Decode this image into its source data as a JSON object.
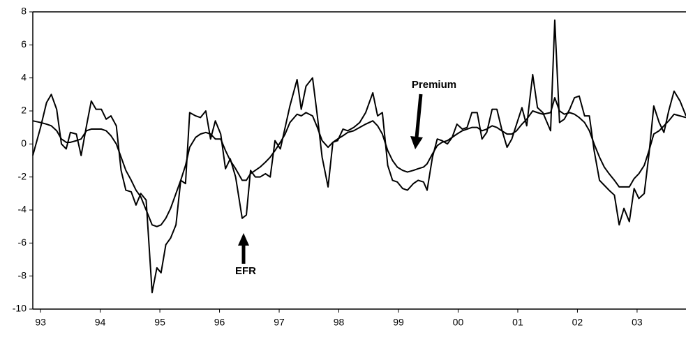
{
  "chart_data": {
    "type": "line",
    "x": [
      1992.87,
      1993.0,
      1993.1,
      1993.18,
      1993.27,
      1993.35,
      1993.43,
      1993.5,
      1993.6,
      1993.68,
      1993.77,
      1993.85,
      1993.93,
      1994.02,
      1994.1,
      1994.18,
      1994.27,
      1994.35,
      1994.43,
      1994.52,
      1994.6,
      1994.68,
      1994.77,
      1994.87,
      1994.95,
      1995.02,
      1995.1,
      1995.18,
      1995.27,
      1995.35,
      1995.43,
      1995.5,
      1995.6,
      1995.68,
      1995.77,
      1995.85,
      1995.93,
      1996.02,
      1996.1,
      1996.18,
      1996.27,
      1996.38,
      1996.45,
      1996.52,
      1996.6,
      1996.68,
      1996.77,
      1996.85,
      1996.93,
      1997.02,
      1997.1,
      1997.18,
      1997.3,
      1997.37,
      1997.45,
      1997.56,
      1997.64,
      1997.72,
      1997.82,
      1997.9,
      1997.98,
      1998.07,
      1998.15,
      1998.25,
      1998.35,
      1998.45,
      1998.57,
      1998.65,
      1998.73,
      1998.82,
      1998.9,
      1998.98,
      1999.07,
      1999.15,
      1999.25,
      1999.33,
      1999.42,
      1999.48,
      1999.57,
      1999.65,
      1999.73,
      1999.82,
      1999.9,
      1999.98,
      2000.07,
      2000.15,
      2000.23,
      2000.32,
      2000.4,
      2000.48,
      2000.57,
      2000.65,
      2000.73,
      2000.82,
      2000.9,
      2000.98,
      2001.07,
      2001.15,
      2001.25,
      2001.33,
      2001.42,
      2001.55,
      2001.62,
      2001.7,
      2001.78,
      2001.87,
      2001.95,
      2002.03,
      2002.12,
      2002.2,
      2002.28,
      2002.37,
      2002.45,
      2002.53,
      2002.62,
      2002.7,
      2002.78,
      2002.87,
      2002.95,
      2003.03,
      2003.12,
      2003.2,
      2003.28,
      2003.37,
      2003.45,
      2003.53,
      2003.62,
      2003.72,
      2003.82
    ],
    "series": [
      {
        "name": "EFR",
        "color": "#000000",
        "values": [
          -0.7,
          1.0,
          2.5,
          3.0,
          2.1,
          0.0,
          -0.3,
          0.7,
          0.6,
          -0.7,
          1.1,
          2.6,
          2.1,
          2.1,
          1.5,
          1.7,
          1.1,
          -1.6,
          -2.8,
          -2.9,
          -3.7,
          -3.0,
          -3.4,
          -9.0,
          -7.5,
          -7.8,
          -6.1,
          -5.7,
          -4.9,
          -2.2,
          -2.4,
          1.9,
          1.7,
          1.6,
          2.0,
          0.3,
          1.4,
          0.6,
          -1.5,
          -0.9,
          -2.0,
          -4.5,
          -4.3,
          -1.6,
          -2.0,
          -2.0,
          -1.8,
          -2.0,
          0.2,
          -0.3,
          1.0,
          2.3,
          3.9,
          2.1,
          3.5,
          4.0,
          1.7,
          -0.8,
          -2.6,
          0.1,
          0.2,
          0.9,
          0.8,
          1.0,
          1.3,
          1.9,
          3.1,
          1.7,
          1.9,
          -1.3,
          -2.2,
          -2.3,
          -2.7,
          -2.8,
          -2.4,
          -2.2,
          -2.3,
          -2.8,
          -0.8,
          0.3,
          0.2,
          0.0,
          0.4,
          1.2,
          0.9,
          1.0,
          1.9,
          1.9,
          0.3,
          0.7,
          2.1,
          2.1,
          0.9,
          -0.2,
          0.3,
          1.2,
          2.2,
          1.1,
          4.2,
          2.2,
          1.9,
          0.8,
          7.5,
          1.3,
          1.5,
          2.1,
          2.8,
          2.9,
          1.7,
          1.7,
          -0.4,
          -2.2,
          -2.5,
          -2.8,
          -3.1,
          -4.9,
          -3.9,
          -4.7,
          -2.7,
          -3.3,
          -3.0,
          -0.6,
          2.3,
          1.3,
          0.7,
          2.0,
          3.2,
          2.6,
          1.7
        ]
      },
      {
        "name": "Premium",
        "color": "#000000",
        "values": [
          1.4,
          1.3,
          1.2,
          1.1,
          0.8,
          0.3,
          0.1,
          0.1,
          0.2,
          0.3,
          0.8,
          0.9,
          0.9,
          0.9,
          0.8,
          0.5,
          0.0,
          -0.8,
          -1.6,
          -2.2,
          -2.8,
          -3.2,
          -4.0,
          -4.9,
          -5.0,
          -4.9,
          -4.5,
          -3.9,
          -3.0,
          -2.2,
          -1.3,
          -0.2,
          0.4,
          0.6,
          0.7,
          0.6,
          0.3,
          0.3,
          -0.4,
          -1.0,
          -1.5,
          -2.2,
          -2.2,
          -1.8,
          -1.6,
          -1.4,
          -1.1,
          -0.8,
          -0.4,
          0.1,
          0.6,
          1.3,
          1.8,
          1.7,
          1.9,
          1.7,
          1.0,
          0.2,
          -0.2,
          0.1,
          0.3,
          0.5,
          0.7,
          0.8,
          1.0,
          1.2,
          1.4,
          1.1,
          0.6,
          -0.4,
          -1.0,
          -1.4,
          -1.6,
          -1.7,
          -1.6,
          -1.5,
          -1.4,
          -1.2,
          -0.6,
          -0.1,
          0.1,
          0.2,
          0.4,
          0.6,
          0.8,
          0.9,
          1.0,
          1.0,
          0.8,
          0.9,
          1.1,
          1.0,
          0.8,
          0.6,
          0.6,
          0.8,
          1.2,
          1.5,
          2.0,
          1.9,
          1.8,
          1.9,
          2.8,
          2.0,
          1.8,
          1.9,
          1.8,
          1.6,
          1.3,
          0.8,
          0.0,
          -0.8,
          -1.4,
          -1.8,
          -2.2,
          -2.6,
          -2.6,
          -2.6,
          -2.1,
          -1.8,
          -1.3,
          -0.4,
          0.6,
          0.8,
          1.1,
          1.4,
          1.8,
          1.7,
          1.6
        ]
      }
    ],
    "xlim": [
      1992.87,
      2003.82
    ],
    "xticks": [
      {
        "value": 1993,
        "label": "93"
      },
      {
        "value": 1994,
        "label": "94"
      },
      {
        "value": 1995,
        "label": "95"
      },
      {
        "value": 1996,
        "label": "96"
      },
      {
        "value": 1997,
        "label": "97"
      },
      {
        "value": 1998,
        "label": "98"
      },
      {
        "value": 1999,
        "label": "99"
      },
      {
        "value": 2000,
        "label": "00"
      },
      {
        "value": 2001,
        "label": "01"
      },
      {
        "value": 2002,
        "label": "02"
      },
      {
        "value": 2003,
        "label": "03"
      }
    ],
    "ylim": [
      -10,
      8
    ],
    "yticks": [
      -10,
      -8,
      -6,
      -4,
      -2,
      0,
      2,
      4,
      6,
      8
    ],
    "grid": false
  }
}
